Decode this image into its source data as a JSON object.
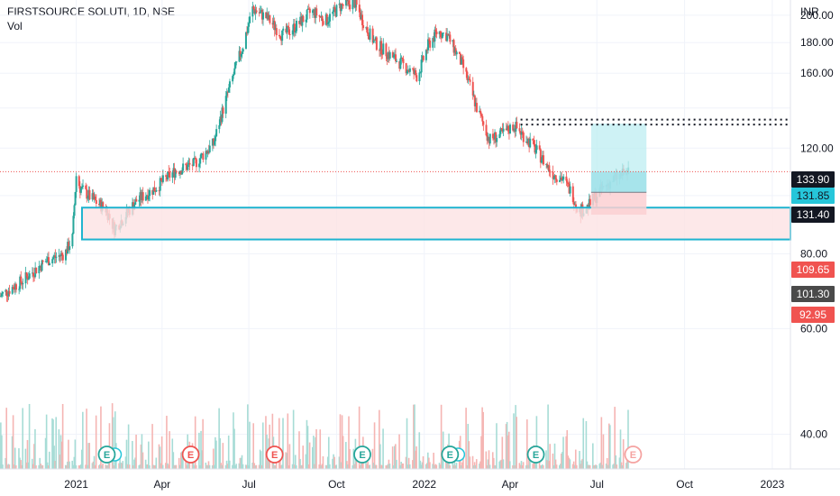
{
  "header": {
    "title": "FIRSTSOURCE SOLUTI, 1D, NSE",
    "volume_label": "Vol"
  },
  "axis": {
    "currency": "INR"
  },
  "chart_data": {
    "type": "candlestick",
    "symbol": "FIRSTSOURCE SOLUTI",
    "interval": "1D",
    "exchange": "NSE",
    "y_unit": "INR",
    "ylim": [
      35,
      212
    ],
    "y_scale": "log",
    "y_ticks": [
      40,
      60,
      80,
      100,
      120,
      140,
      160,
      180,
      200
    ],
    "y_tick_labels": [
      "40.00",
      "60.00",
      "80.00",
      "",
      "120.00",
      "",
      "160.00",
      "180.00",
      "200.00"
    ],
    "x_ticks": [
      "2021",
      "Apr",
      "Jul",
      "Oct",
      "2022",
      "Apr",
      "Jul",
      "Oct",
      "2023"
    ],
    "x_tick_dates": [
      "2021-01-01",
      "2021-04-01",
      "2021-07-01",
      "2021-10-01",
      "2022-01-01",
      "2022-04-01",
      "2022-07-01",
      "2022-10-01",
      "2023-01-01"
    ],
    "xlim": [
      "2020-10-13",
      "2023-01-20"
    ],
    "price_path": [
      [
        "2020-10-13",
        68
      ],
      [
        "2020-11-05",
        72
      ],
      [
        "2020-12-01",
        78
      ],
      [
        "2020-12-20",
        80
      ],
      [
        "2020-12-28",
        85
      ],
      [
        "2021-01-01",
        108
      ],
      [
        "2021-01-05",
        103
      ],
      [
        "2021-01-20",
        98
      ],
      [
        "2021-02-01",
        95
      ],
      [
        "2021-02-10",
        88
      ],
      [
        "2021-02-20",
        92
      ],
      [
        "2021-03-05",
        98
      ],
      [
        "2021-03-25",
        103
      ],
      [
        "2021-04-15",
        110
      ],
      [
        "2021-05-05",
        113
      ],
      [
        "2021-05-25",
        122
      ],
      [
        "2021-06-10",
        150
      ],
      [
        "2021-06-25",
        178
      ],
      [
        "2021-07-05",
        205
      ],
      [
        "2021-07-20",
        198
      ],
      [
        "2021-08-05",
        185
      ],
      [
        "2021-08-20",
        192
      ],
      [
        "2021-09-05",
        203
      ],
      [
        "2021-09-20",
        196
      ],
      [
        "2021-10-05",
        207
      ],
      [
        "2021-10-20",
        210
      ],
      [
        "2021-11-01",
        190
      ],
      [
        "2021-11-10",
        180
      ],
      [
        "2021-11-25",
        172
      ],
      [
        "2021-12-10",
        165
      ],
      [
        "2021-12-25",
        158
      ],
      [
        "2022-01-05",
        178
      ],
      [
        "2022-01-15",
        188
      ],
      [
        "2022-01-25",
        185
      ],
      [
        "2022-02-10",
        165
      ],
      [
        "2022-02-25",
        140
      ],
      [
        "2022-03-10",
        124
      ],
      [
        "2022-03-25",
        127
      ],
      [
        "2022-04-05",
        131
      ],
      [
        "2022-04-15",
        126
      ],
      [
        "2022-04-25",
        121
      ],
      [
        "2022-05-05",
        115
      ],
      [
        "2022-05-15",
        109
      ],
      [
        "2022-05-25",
        107
      ],
      [
        "2022-06-05",
        101
      ],
      [
        "2022-06-12",
        94
      ],
      [
        "2022-06-22",
        96
      ],
      [
        "2022-07-05",
        102
      ],
      [
        "2022-07-20",
        107
      ],
      [
        "2022-08-03",
        109.65
      ]
    ],
    "last_price": 109.65,
    "price_labels": [
      {
        "value": 133.9,
        "label": "133.90",
        "bg": "#131722",
        "fg": "#ffffff"
      },
      {
        "value": 131.85,
        "label": "131.85",
        "bg": "#26c6da",
        "fg": "#131722"
      },
      {
        "value": 131.4,
        "label": "131.40",
        "bg": "#131722",
        "fg": "#ffffff"
      },
      {
        "value": 109.65,
        "label": "109.65",
        "bg": "#f05350",
        "fg": "#ffffff"
      },
      {
        "value": 101.3,
        "label": "101.30",
        "bg": "#4a4a4a",
        "fg": "#ffffff"
      },
      {
        "value": 92.95,
        "label": "92.95",
        "bg": "#f05350",
        "fg": "#ffffff"
      }
    ],
    "dotted_levels": [
      {
        "value": 133.9,
        "from": "2022-04-12"
      },
      {
        "value": 131.4,
        "from": "2022-04-12"
      }
    ],
    "support_zone": {
      "low": 84.5,
      "high": 95.5,
      "from": "2021-01-07"
    },
    "long_position": {
      "from": "2022-06-25",
      "to": "2022-08-22",
      "entry": 101.3,
      "target": 131.85,
      "stop": 92.95
    },
    "earnings_markers": [
      {
        "date": "2021-02-02",
        "label": "E",
        "kind": "positive",
        "dividend": true
      },
      {
        "date": "2021-05-01",
        "label": "E",
        "kind": "negative",
        "dividend": false
      },
      {
        "date": "2021-07-28",
        "label": "E",
        "kind": "negative",
        "dividend": false
      },
      {
        "date": "2021-10-28",
        "label": "E",
        "kind": "positive",
        "dividend": false
      },
      {
        "date": "2022-01-28",
        "label": "E",
        "kind": "positive",
        "dividend": true
      },
      {
        "date": "2022-04-28",
        "label": "E",
        "kind": "positive",
        "dividend": false
      },
      {
        "date": "2022-08-08",
        "label": "E",
        "kind": "upcoming",
        "dividend": false
      }
    ],
    "colors": {
      "up": "#26a69a",
      "down": "#ef5350",
      "vol_up": "#a7dcd6",
      "vol_down": "#f5b5b3",
      "zone_fill": "#fde2e4",
      "zone_border": "#1fb4cf",
      "target_fill": "#bdeef2",
      "target_fill_dark": "#9de0e8",
      "stop_fill": "#fbd0d2",
      "grid": "#f0f3fa",
      "axis_text": "#131722",
      "last_line": "#ef5350"
    }
  }
}
